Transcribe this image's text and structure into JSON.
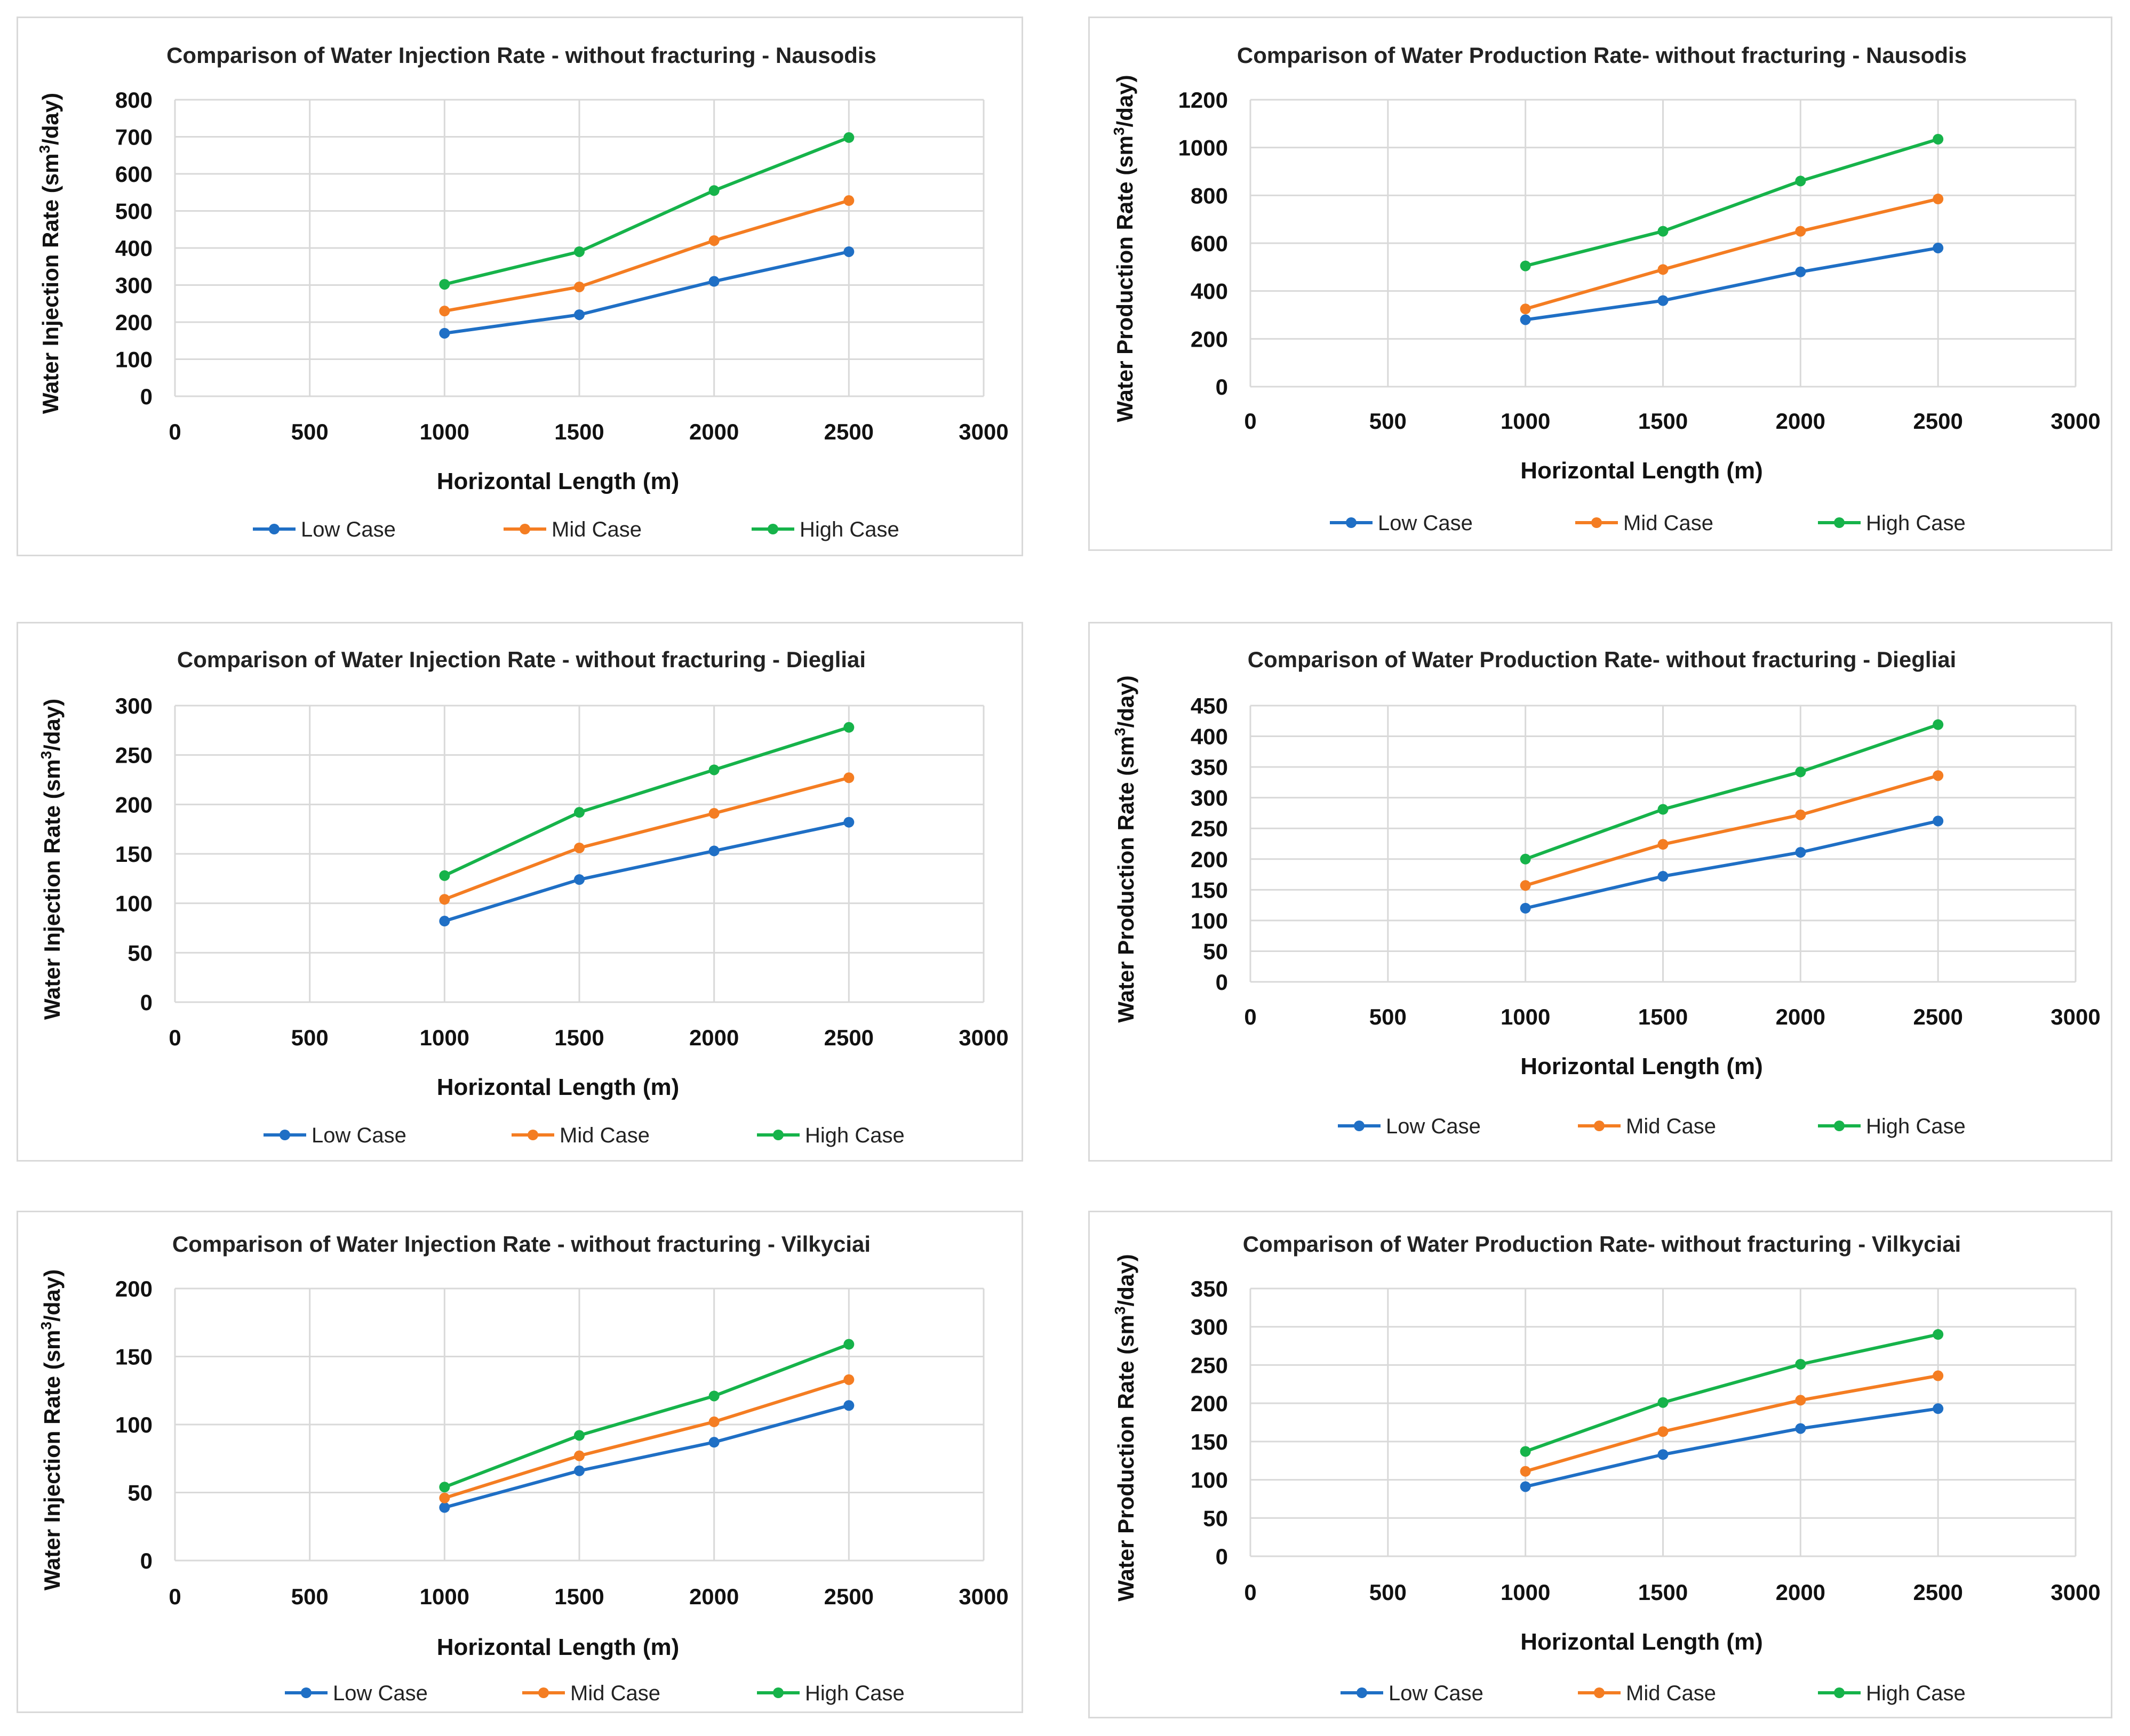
{
  "colors": {
    "low": "#1f6fc5",
    "mid": "#f47d22",
    "high": "#16b34a",
    "grid": "#d9d9d9",
    "text": "#000000"
  },
  "chart_data": [
    {
      "type": "line",
      "title": "Comparison of Water Injection Rate - without fracturing - Nausodis",
      "xlabel": "Horizontal Length (m)",
      "ylabel_main": "Water Injection Rate (sm",
      "ylabel_sup": "3",
      "ylabel_tail": "/day)",
      "xlim": [
        0,
        3000
      ],
      "xticks": [
        0,
        500,
        1000,
        1500,
        2000,
        2500,
        3000
      ],
      "ylim": [
        0,
        800
      ],
      "yticks": [
        0,
        100,
        200,
        300,
        400,
        500,
        600,
        700,
        800
      ],
      "grid": true,
      "legend": "bottom",
      "x": [
        1000,
        1500,
        2000,
        2500
      ],
      "series": [
        {
          "name": "Low Case",
          "color_key": "low",
          "values": [
            170,
            220,
            310,
            390
          ]
        },
        {
          "name": "Mid Case",
          "color_key": "mid",
          "values": [
            230,
            295,
            420,
            528
          ]
        },
        {
          "name": "High Case",
          "color_key": "high",
          "values": [
            302,
            390,
            555,
            698
          ]
        }
      ]
    },
    {
      "type": "line",
      "title": "Comparison of Water Production Rate- without fracturing - Nausodis",
      "xlabel": "Horizontal Length (m)",
      "ylabel_main": "Water Production Rate (sm",
      "ylabel_sup": "3",
      "ylabel_tail": "/day)",
      "xlim": [
        0,
        3000
      ],
      "xticks": [
        0,
        500,
        1000,
        1500,
        2000,
        2500,
        3000
      ],
      "ylim": [
        0,
        1200
      ],
      "yticks": [
        0,
        200,
        400,
        600,
        800,
        1000,
        1200
      ],
      "grid": true,
      "legend": "bottom",
      "x": [
        1000,
        1500,
        2000,
        2500
      ],
      "series": [
        {
          "name": "Low Case",
          "color_key": "low",
          "values": [
            280,
            360,
            480,
            580
          ]
        },
        {
          "name": "Mid Case",
          "color_key": "mid",
          "values": [
            325,
            490,
            650,
            785
          ]
        },
        {
          "name": "High Case",
          "color_key": "high",
          "values": [
            505,
            650,
            860,
            1035
          ]
        }
      ]
    },
    {
      "type": "line",
      "title": "Comparison of Water Injection Rate - without fracturing - Diegliai",
      "xlabel": "Horizontal Length (m)",
      "ylabel_main": "Water Injection Rate (sm",
      "ylabel_sup": "3",
      "ylabel_tail": "/day)",
      "xlim": [
        0,
        3000
      ],
      "xticks": [
        0,
        500,
        1000,
        1500,
        2000,
        2500,
        3000
      ],
      "ylim": [
        0,
        300
      ],
      "yticks": [
        0,
        50,
        100,
        150,
        200,
        250,
        300
      ],
      "grid": true,
      "legend": "bottom",
      "x": [
        1000,
        1500,
        2000,
        2500
      ],
      "series": [
        {
          "name": "Low Case",
          "color_key": "low",
          "values": [
            82,
            124,
            153,
            182
          ]
        },
        {
          "name": "Mid Case",
          "color_key": "mid",
          "values": [
            104,
            156,
            191,
            227
          ]
        },
        {
          "name": "High Case",
          "color_key": "high",
          "values": [
            128,
            192,
            235,
            278
          ]
        }
      ]
    },
    {
      "type": "line",
      "title": "Comparison of Water Production Rate- without fracturing - Diegliai",
      "xlabel": "Horizontal Length (m)",
      "ylabel_main": "Water Production Rate (sm",
      "ylabel_sup": "3",
      "ylabel_tail": "/day)",
      "xlim": [
        0,
        3000
      ],
      "xticks": [
        0,
        500,
        1000,
        1500,
        2000,
        2500,
        3000
      ],
      "ylim": [
        0,
        450
      ],
      "yticks": [
        0,
        50,
        100,
        150,
        200,
        250,
        300,
        350,
        400,
        450
      ],
      "grid": true,
      "legend": "bottom",
      "x": [
        1000,
        1500,
        2000,
        2500
      ],
      "series": [
        {
          "name": "Low Case",
          "color_key": "low",
          "values": [
            120,
            172,
            211,
            262
          ]
        },
        {
          "name": "Mid Case",
          "color_key": "mid",
          "values": [
            157,
            224,
            272,
            336
          ]
        },
        {
          "name": "High Case",
          "color_key": "high",
          "values": [
            200,
            281,
            342,
            419
          ]
        }
      ]
    },
    {
      "type": "line",
      "title": "Comparison of Water Injection Rate - without fracturing - Vilkyciai",
      "xlabel": "Horizontal Length (m)",
      "ylabel_main": "Water Injection Rate (sm",
      "ylabel_sup": "3",
      "ylabel_tail": "/day)",
      "xlim": [
        0,
        3000
      ],
      "xticks": [
        0,
        500,
        1000,
        1500,
        2000,
        2500,
        3000
      ],
      "ylim": [
        0,
        200
      ],
      "yticks": [
        0,
        50,
        100,
        150,
        200
      ],
      "grid": true,
      "legend": "bottom",
      "x": [
        1000,
        1500,
        2000,
        2500
      ],
      "series": [
        {
          "name": "Low Case",
          "color_key": "low",
          "values": [
            39,
            66,
            87,
            114
          ]
        },
        {
          "name": "Mid Case",
          "color_key": "mid",
          "values": [
            46,
            77,
            102,
            133
          ]
        },
        {
          "name": "High Case",
          "color_key": "high",
          "values": [
            54,
            92,
            121,
            159
          ]
        }
      ]
    },
    {
      "type": "line",
      "title": "Comparison of Water Production Rate- without fracturing - Vilkyciai",
      "xlabel": "Horizontal Length (m)",
      "ylabel_main": "Water Production Rate (sm",
      "ylabel_sup": "3",
      "ylabel_tail": "/day)",
      "xlim": [
        0,
        3000
      ],
      "xticks": [
        0,
        500,
        1000,
        1500,
        2000,
        2500,
        3000
      ],
      "ylim": [
        0,
        350
      ],
      "yticks": [
        0,
        50,
        100,
        150,
        200,
        250,
        300,
        350
      ],
      "grid": true,
      "legend": "bottom",
      "x": [
        1000,
        1500,
        2000,
        2500
      ],
      "series": [
        {
          "name": "Low Case",
          "color_key": "low",
          "values": [
            91,
            133,
            167,
            193
          ]
        },
        {
          "name": "Mid Case",
          "color_key": "mid",
          "values": [
            111,
            163,
            204,
            236
          ]
        },
        {
          "name": "High Case",
          "color_key": "high",
          "values": [
            137,
            201,
            251,
            290
          ]
        }
      ]
    }
  ]
}
